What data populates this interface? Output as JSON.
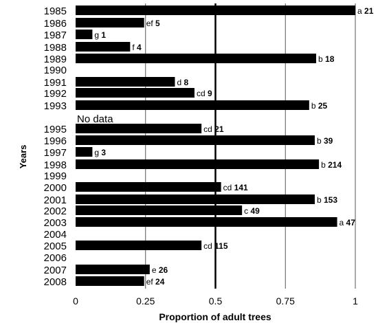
{
  "chart_data": {
    "type": "bar",
    "orientation": "horizontal",
    "title": "",
    "xlabel": "Proportion of adult trees",
    "ylabel": "Years",
    "xlim": [
      0,
      1
    ],
    "x_ticks": [
      "0",
      "0.25",
      "0.5",
      "0.75",
      "1"
    ],
    "grid": "vertical lines at 0.25, 0.5, 0.75, 1",
    "categories": [
      "1985",
      "1986",
      "1987",
      "1988",
      "1989",
      "1990",
      "1991",
      "1992",
      "1993",
      "1995",
      "1996",
      "1997",
      "1998",
      "1999",
      "2000",
      "2001",
      "2002",
      "2003",
      "2004",
      "2005",
      "2006",
      "2007",
      "2008"
    ],
    "values": [
      1.0,
      0.245,
      0.06,
      0.195,
      0.86,
      null,
      0.355,
      0.425,
      0.835,
      0.45,
      0.855,
      0.06,
      0.87,
      null,
      0.52,
      0.855,
      0.595,
      0.935,
      null,
      0.45,
      null,
      0.265,
      0.245
    ],
    "letters": [
      "a",
      "ef",
      "g",
      "f",
      "b",
      "",
      "d",
      "cd",
      "b",
      "cd",
      "b",
      "g",
      "b",
      "",
      "cd",
      "b",
      "c",
      "a",
      "",
      "cd",
      "",
      "e",
      "ef"
    ],
    "counts": [
      "21",
      "5",
      "1",
      "4",
      "18",
      "",
      "8",
      "9",
      "25",
      "21",
      "39",
      "3",
      "214",
      "",
      "141",
      "153",
      "49",
      "47",
      "",
      "115",
      "",
      "26",
      "24"
    ],
    "annotation": "No data",
    "bar_color": "#000000"
  }
}
